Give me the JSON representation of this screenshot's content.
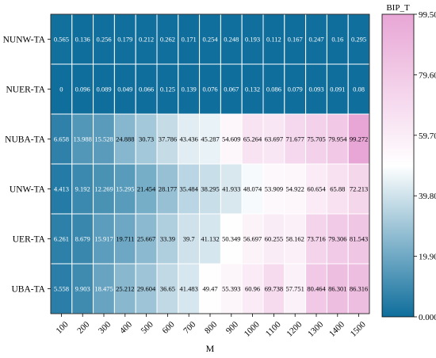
{
  "chart_data": {
    "type": "heatmap",
    "title": "",
    "xlabel": "M",
    "ylabel": "",
    "x_categories": [
      "100",
      "200",
      "300",
      "400",
      "500",
      "600",
      "700",
      "800",
      "900",
      "1000",
      "1100",
      "1200",
      "1300",
      "1400",
      "1500"
    ],
    "y_categories": [
      "NUNW-TA",
      "NUER-TA",
      "NUBA-TA",
      "UNW-TA",
      "UER-TA",
      "UBA-TA"
    ],
    "cell_labels": [
      [
        "0.565",
        "0.136",
        "0.256",
        "0.179",
        "0.212",
        "0.262",
        "0.171",
        "0.254",
        "0.248",
        "0.193",
        "0.112",
        "0.167",
        "0.247",
        "0.16",
        "0.295"
      ],
      [
        "0",
        "0.096",
        "0.089",
        "0.049",
        "0.066",
        "0.125",
        "0.139",
        "0.076",
        "0.067",
        "0.132",
        "0.086",
        "0.079",
        "0.093",
        "0.091",
        "0.08"
      ],
      [
        "6.658",
        "13.988",
        "15.528",
        "24.888",
        "30.73",
        "37.786",
        "43.436",
        "45.287",
        "54.609",
        "65.264",
        "63.697",
        "71.677",
        "75.705",
        "79.954",
        "99.272"
      ],
      [
        "4.413",
        "9.192",
        "12.269",
        "15.295",
        "21.454",
        "28.177",
        "35.484",
        "38.295",
        "41.933",
        "48.074",
        "53.909",
        "54.922",
        "60.654",
        "65.88",
        "72.213"
      ],
      [
        "6.261",
        "8.679",
        "15.917",
        "19.711",
        "25.667",
        "33.39",
        "39.7",
        "41.132",
        "50.349",
        "56.697",
        "60.255",
        "58.162",
        "73.716",
        "79.306",
        "81.543"
      ],
      [
        "5.558",
        "9.903",
        "18.475",
        "25.212",
        "29.604",
        "36.65",
        "41.483",
        "49.47",
        "55.393",
        "60.96",
        "69.738",
        "57.751",
        "80.464",
        "86.301",
        "86.316"
      ]
    ],
    "values": [
      [
        0.565,
        0.136,
        0.256,
        0.179,
        0.212,
        0.262,
        0.171,
        0.254,
        0.248,
        0.193,
        0.112,
        0.167,
        0.247,
        0.16,
        0.295
      ],
      [
        0,
        0.096,
        0.089,
        0.049,
        0.066,
        0.125,
        0.139,
        0.076,
        0.067,
        0.132,
        0.086,
        0.079,
        0.093,
        0.091,
        0.08
      ],
      [
        6.658,
        13.988,
        15.528,
        24.888,
        30.73,
        37.786,
        43.436,
        45.287,
        54.609,
        65.264,
        63.697,
        71.677,
        75.705,
        79.954,
        99.272
      ],
      [
        4.413,
        9.192,
        12.269,
        15.295,
        21.454,
        28.177,
        35.484,
        38.295,
        41.933,
        48.074,
        53.909,
        54.922,
        60.654,
        65.88,
        72.213
      ],
      [
        6.261,
        8.679,
        15.917,
        19.711,
        25.667,
        33.39,
        39.7,
        41.132,
        50.349,
        56.697,
        60.255,
        58.162,
        73.716,
        79.306,
        81.543
      ],
      [
        5.558,
        9.903,
        18.475,
        25.212,
        29.604,
        36.65,
        41.483,
        49.47,
        55.393,
        60.96,
        69.738,
        57.751,
        80.464,
        86.301,
        86.316
      ]
    ],
    "colorbar": {
      "title": "BIP_T",
      "ticks": [
        "99.50",
        "79.60",
        "59.70",
        "39.80",
        "19.90",
        "0.000"
      ],
      "range": [
        0,
        99.5
      ],
      "colormap": [
        "#0f6e9c",
        "#ffffff",
        "#e8a6d6"
      ]
    },
    "grid": true
  }
}
